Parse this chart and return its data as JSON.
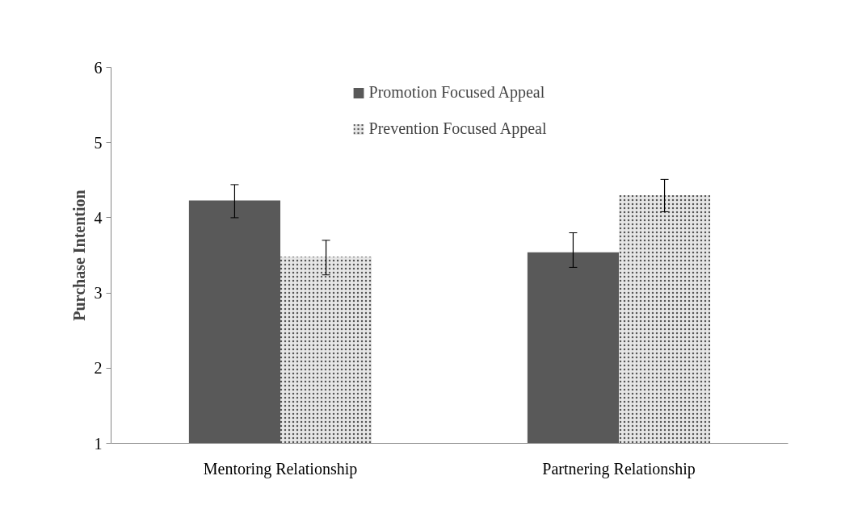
{
  "chart_data": {
    "type": "bar",
    "ylabel": "Purchase Intention",
    "categories": [
      "Mentoring Relationship",
      "Partnering Relationship"
    ],
    "series": [
      {
        "name": "Promotion Focused Appeal",
        "color": "#595959",
        "values": [
          4.23,
          3.54
        ],
        "errors": [
          [
            4.0,
            4.44
          ],
          [
            3.34,
            3.8
          ]
        ]
      },
      {
        "name": "Prevention Focused Appeal",
        "color": "#e6e6e6",
        "values": [
          3.48,
          4.3
        ],
        "errors": [
          [
            3.24,
            3.7
          ],
          [
            4.08,
            4.51
          ]
        ]
      }
    ],
    "ylim": [
      1,
      6
    ],
    "yticks": [
      1,
      2,
      3,
      4,
      5,
      6
    ],
    "legend": "top",
    "grid": false
  }
}
